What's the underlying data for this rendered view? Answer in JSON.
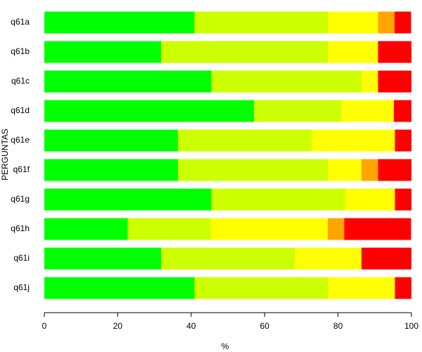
{
  "chart_data": {
    "type": "stacked-bar-horizontal",
    "xlabel": "%",
    "ylabel": "PERGUNTAS",
    "categories": [
      "q61a",
      "q61b",
      "q61c",
      "q61d",
      "q61e",
      "q61f",
      "q61g",
      "q61h",
      "q61i",
      "q61j"
    ],
    "series": [
      {
        "color": "#00ff00",
        "values": [
          40.9,
          31.8,
          45.5,
          57.1,
          36.4,
          36.4,
          45.5,
          22.7,
          31.8,
          40.9
        ]
      },
      {
        "color": "#ccff00",
        "values": [
          36.4,
          45.5,
          40.9,
          23.8,
          36.4,
          40.9,
          36.4,
          22.7,
          36.4,
          36.4
        ]
      },
      {
        "color": "#ffff00",
        "values": [
          13.6,
          13.6,
          4.5,
          14.3,
          22.7,
          9.1,
          13.6,
          31.8,
          18.2,
          18.2
        ]
      },
      {
        "color": "#ffa500",
        "values": [
          4.5,
          0,
          0,
          0,
          0,
          4.5,
          0,
          4.5,
          0,
          0
        ]
      },
      {
        "color": "#ff0000",
        "values": [
          4.5,
          9.1,
          9.1,
          4.8,
          4.5,
          9.1,
          4.5,
          18.2,
          13.6,
          4.5
        ]
      }
    ],
    "xlim": [
      0,
      100
    ],
    "xticks": [
      0,
      20,
      40,
      60,
      80,
      100
    ]
  }
}
